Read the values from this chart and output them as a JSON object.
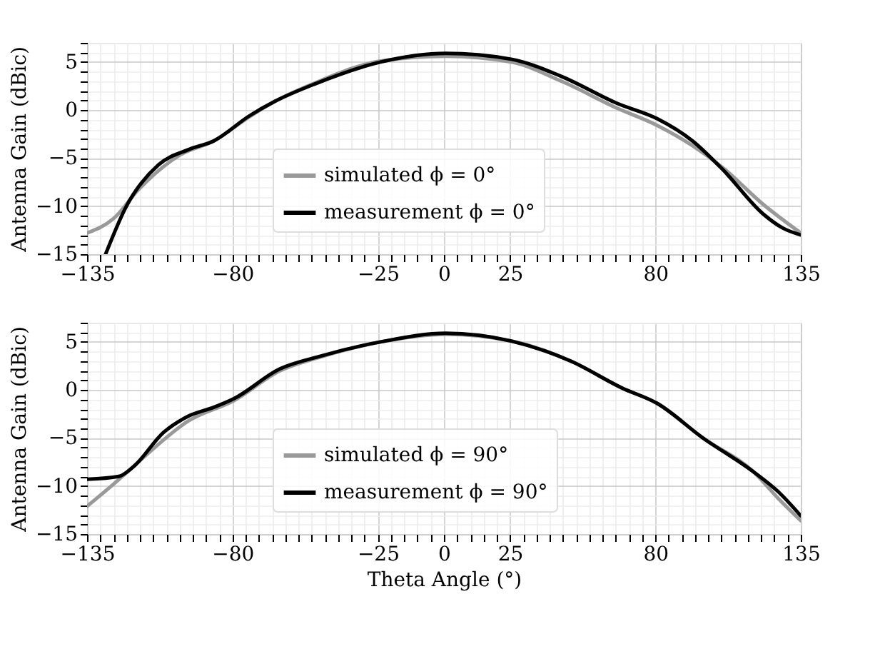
{
  "chart_data": [
    {
      "type": "line",
      "ylabel": "Antenna Gain (dBic)",
      "xlim": [
        -135,
        135
      ],
      "ylim": [
        -15,
        7
      ],
      "xticks": [
        -135,
        {
          "value": -130,
          "label": null
        },
        {
          "value": -125,
          "label": null
        },
        {
          "value": -120,
          "label": null
        },
        {
          "value": -115,
          "label": null
        },
        {
          "value": -110,
          "label": null
        },
        {
          "value": -105,
          "label": null
        },
        {
          "value": -100,
          "label": null
        },
        {
          "value": -95,
          "label": null
        },
        {
          "value": -90,
          "label": null
        },
        {
          "value": -85,
          "label": null
        },
        -80,
        {
          "value": -75,
          "label": null
        },
        {
          "value": -70,
          "label": null
        },
        {
          "value": -65,
          "label": null
        },
        {
          "value": -60,
          "label": null
        },
        {
          "value": -55,
          "label": null
        },
        {
          "value": -50,
          "label": null
        },
        {
          "value": -45,
          "label": null
        },
        {
          "value": -40,
          "label": null
        },
        {
          "value": -35,
          "label": null
        },
        {
          "value": -30,
          "label": null
        },
        -25,
        {
          "value": -20,
          "label": null
        },
        {
          "value": -15,
          "label": null
        },
        {
          "value": -10,
          "label": null
        },
        {
          "value": -5,
          "label": null
        },
        0,
        {
          "value": 5,
          "label": null
        },
        {
          "value": 10,
          "label": null
        },
        {
          "value": 15,
          "label": null
        },
        {
          "value": 20,
          "label": null
        },
        25,
        {
          "value": 30,
          "label": null
        },
        {
          "value": 35,
          "label": null
        },
        {
          "value": 40,
          "label": null
        },
        {
          "value": 45,
          "label": null
        },
        {
          "value": 50,
          "label": null
        },
        {
          "value": 55,
          "label": null
        },
        {
          "value": 60,
          "label": null
        },
        {
          "value": 65,
          "label": null
        },
        {
          "value": 70,
          "label": null
        },
        {
          "value": 75,
          "label": null
        },
        80,
        {
          "value": 85,
          "label": null
        },
        {
          "value": 90,
          "label": null
        },
        {
          "value": 95,
          "label": null
        },
        {
          "value": 100,
          "label": null
        },
        {
          "value": 105,
          "label": null
        },
        {
          "value": 110,
          "label": null
        },
        {
          "value": 115,
          "label": null
        },
        {
          "value": 120,
          "label": null
        },
        {
          "value": 125,
          "label": null
        },
        {
          "value": 130,
          "label": null
        },
        135
      ],
      "yticks": [
        -15,
        {
          "value": -14,
          "label": null
        },
        {
          "value": -13,
          "label": null
        },
        {
          "value": -12,
          "label": null
        },
        {
          "value": -11,
          "label": null
        },
        -10,
        {
          "value": -9,
          "label": null
        },
        {
          "value": -8,
          "label": null
        },
        {
          "value": -7,
          "label": null
        },
        {
          "value": -6,
          "label": null
        },
        -5,
        {
          "value": -4,
          "label": null
        },
        {
          "value": -3,
          "label": null
        },
        {
          "value": -2,
          "label": null
        },
        {
          "value": -1,
          "label": null
        },
        0,
        {
          "value": 1,
          "label": null
        },
        {
          "value": 2,
          "label": null
        },
        {
          "value": 3,
          "label": null
        },
        {
          "value": 4,
          "label": null
        },
        5,
        {
          "value": 6,
          "label": null
        },
        {
          "value": 7,
          "label": null
        }
      ],
      "grid": true,
      "legend": "bottom",
      "line_style": "solid",
      "marker": "none",
      "series": [
        {
          "name": "simulated ϕ = 0°",
          "color": "#999999",
          "x": [
            -135,
            -125,
            -115.6,
            -100,
            -87,
            -73.6,
            -64,
            -49,
            -24,
            0.7,
            25.4,
            44.5,
            65.5,
            80.7,
            94,
            105.5,
            120.7,
            135
          ],
          "values": [
            -12.8,
            -11.3,
            -8.3,
            -4.7,
            -3.2,
            -0.7,
            0.9,
            2.8,
            5.1,
            5.6,
            5.0,
            3.0,
            0.2,
            -1.6,
            -3.7,
            -6.0,
            -9.8,
            -12.8
          ]
        },
        {
          "name": "measurement ϕ = 0°",
          "color": "#000000",
          "x": [
            -128,
            -120.3,
            -108,
            -96.5,
            -87,
            -73.6,
            -64,
            -49,
            -24,
            0.7,
            25.4,
            44.5,
            65.5,
            80.7,
            94,
            105.5,
            120.7,
            128.3,
            135
          ],
          "values": [
            -15,
            -10.1,
            -5.7,
            -4.1,
            -3.2,
            -0.6,
            0.9,
            2.7,
            5.0,
            5.9,
            5.3,
            3.5,
            0.7,
            -0.9,
            -3.2,
            -6.2,
            -10.8,
            -12.3,
            -13.0
          ]
        }
      ]
    },
    {
      "type": "line",
      "ylabel": "Antenna Gain (dBic)",
      "xlabel": "Theta Angle (°)",
      "xlim": [
        -135,
        135
      ],
      "ylim": [
        -15,
        7
      ],
      "xticks": [
        -135,
        {
          "value": -130,
          "label": null
        },
        {
          "value": -125,
          "label": null
        },
        {
          "value": -120,
          "label": null
        },
        {
          "value": -115,
          "label": null
        },
        {
          "value": -110,
          "label": null
        },
        {
          "value": -105,
          "label": null
        },
        {
          "value": -100,
          "label": null
        },
        {
          "value": -95,
          "label": null
        },
        {
          "value": -90,
          "label": null
        },
        {
          "value": -85,
          "label": null
        },
        -80,
        {
          "value": -75,
          "label": null
        },
        {
          "value": -70,
          "label": null
        },
        {
          "value": -65,
          "label": null
        },
        {
          "value": -60,
          "label": null
        },
        {
          "value": -55,
          "label": null
        },
        {
          "value": -50,
          "label": null
        },
        {
          "value": -45,
          "label": null
        },
        {
          "value": -40,
          "label": null
        },
        {
          "value": -35,
          "label": null
        },
        {
          "value": -30,
          "label": null
        },
        -25,
        {
          "value": -20,
          "label": null
        },
        {
          "value": -15,
          "label": null
        },
        {
          "value": -10,
          "label": null
        },
        {
          "value": -5,
          "label": null
        },
        0,
        {
          "value": 5,
          "label": null
        },
        {
          "value": 10,
          "label": null
        },
        {
          "value": 15,
          "label": null
        },
        {
          "value": 20,
          "label": null
        },
        25,
        {
          "value": 30,
          "label": null
        },
        {
          "value": 35,
          "label": null
        },
        {
          "value": 40,
          "label": null
        },
        {
          "value": 45,
          "label": null
        },
        {
          "value": 50,
          "label": null
        },
        {
          "value": 55,
          "label": null
        },
        {
          "value": 60,
          "label": null
        },
        {
          "value": 65,
          "label": null
        },
        {
          "value": 70,
          "label": null
        },
        {
          "value": 75,
          "label": null
        },
        80,
        {
          "value": 85,
          "label": null
        },
        {
          "value": 90,
          "label": null
        },
        {
          "value": 95,
          "label": null
        },
        {
          "value": 100,
          "label": null
        },
        {
          "value": 105,
          "label": null
        },
        {
          "value": 110,
          "label": null
        },
        {
          "value": 115,
          "label": null
        },
        {
          "value": 120,
          "label": null
        },
        {
          "value": 125,
          "label": null
        },
        {
          "value": 130,
          "label": null
        },
        135
      ],
      "yticks": [
        -15,
        {
          "value": -14,
          "label": null
        },
        {
          "value": -13,
          "label": null
        },
        {
          "value": -12,
          "label": null
        },
        {
          "value": -11,
          "label": null
        },
        -10,
        {
          "value": -9,
          "label": null
        },
        {
          "value": -8,
          "label": null
        },
        {
          "value": -7,
          "label": null
        },
        {
          "value": -6,
          "label": null
        },
        -5,
        {
          "value": -4,
          "label": null
        },
        {
          "value": -3,
          "label": null
        },
        {
          "value": -2,
          "label": null
        },
        {
          "value": -1,
          "label": null
        },
        0,
        {
          "value": 1,
          "label": null
        },
        {
          "value": 2,
          "label": null
        },
        {
          "value": 3,
          "label": null
        },
        {
          "value": 4,
          "label": null
        },
        5,
        {
          "value": 6,
          "label": null
        },
        {
          "value": 7,
          "label": null
        }
      ],
      "grid": true,
      "legend": "bottom",
      "line_style": "solid",
      "marker": "none",
      "series": [
        {
          "name": "simulated ϕ = 90°",
          "color": "#999999",
          "x": [
            -135,
            -125,
            -115.6,
            -96.5,
            -79.4,
            -62,
            -47,
            -24,
            0.7,
            25.4,
            48,
            67.4,
            80.7,
            98,
            117,
            126.5,
            135
          ],
          "values": [
            -12.1,
            -9.8,
            -7.5,
            -3.2,
            -1.1,
            2.0,
            3.4,
            5.0,
            5.8,
            5.1,
            3.0,
            0.2,
            -1.4,
            -5.0,
            -8.5,
            -11.3,
            -13.6
          ]
        },
        {
          "name": "measurement ϕ = 90°",
          "color": "#000000",
          "x": [
            -135,
            -123,
            -117.5,
            -106,
            -96.5,
            -87,
            -79.4,
            -62,
            -47,
            -24,
            0.7,
            25.4,
            48,
            67.4,
            80.7,
            98,
            117,
            126.5,
            135
          ],
          "values": [
            -9.3,
            -9.0,
            -8.0,
            -4.4,
            -2.7,
            -1.8,
            -0.9,
            2.2,
            3.5,
            5.0,
            5.9,
            5.1,
            3.0,
            0.2,
            -1.4,
            -5.0,
            -8.5,
            -10.6,
            -13.1
          ]
        }
      ]
    }
  ]
}
